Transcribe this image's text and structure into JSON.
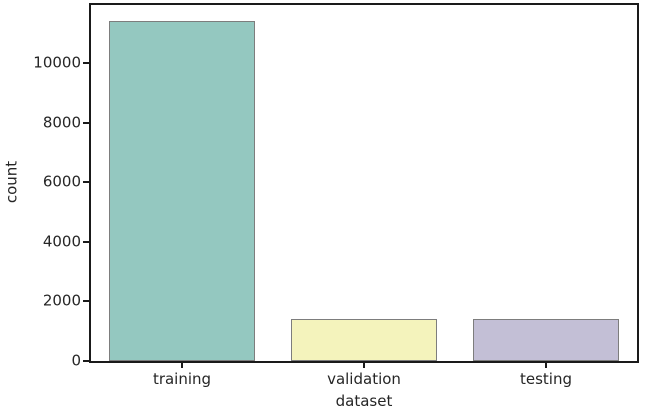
{
  "figure": {
    "background": "#ffffff",
    "spine_color": "#1a1a1a",
    "text_color": "#262626"
  },
  "chart_data": {
    "type": "bar",
    "title": "",
    "xlabel": "dataset",
    "ylabel": "count",
    "categories": [
      "training",
      "validation",
      "testing"
    ],
    "values": [
      11400,
      1400,
      1400
    ],
    "bar_colors": [
      "#94c8c0",
      "#f4f3bc",
      "#c3bfd6"
    ],
    "bar_edge_color": "#7d7d7d",
    "ylim": [
      0,
      11950
    ],
    "yticks": [
      0,
      2000,
      4000,
      6000,
      8000,
      10000
    ],
    "grid": false,
    "legend_position": "none",
    "bar_width_fraction": 0.8
  }
}
